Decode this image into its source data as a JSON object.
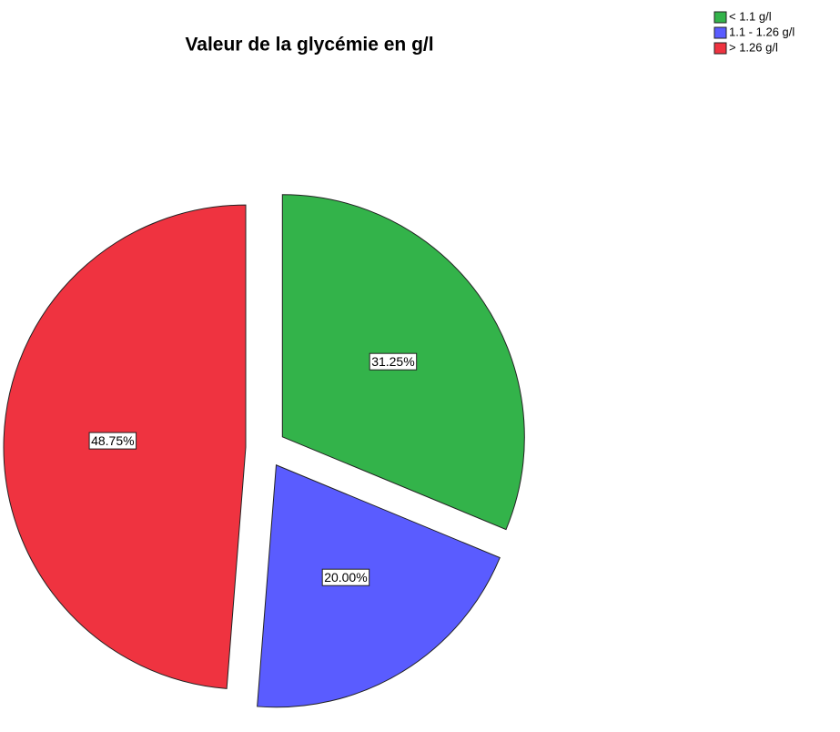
{
  "chart_data": {
    "type": "pie",
    "title": "Valeur de la glycémie en g/l",
    "categories": [
      "< 1.1 g/l",
      "1.1 - 1.26 g/l",
      "> 1.26 g/l"
    ],
    "values": [
      31.25,
      20.0,
      48.75
    ],
    "value_labels": [
      "31.25%",
      "20.00%",
      "48.75%"
    ],
    "colors": [
      "#33b34a",
      "#5a5cff",
      "#ef3340"
    ],
    "legend": "top-right",
    "exploded": true
  }
}
